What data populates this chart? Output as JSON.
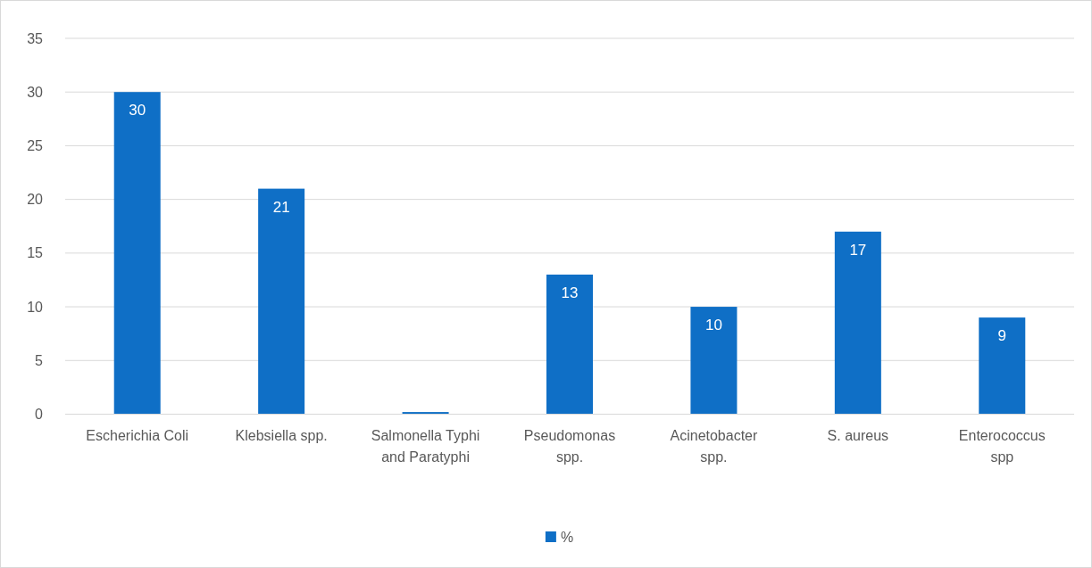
{
  "chart_data": {
    "type": "bar",
    "categories": [
      "Escherichia Coli",
      "Klebsiella spp.",
      "Salmonella Typhi and Paratyphi",
      "Pseudomonas spp.",
      "Acinetobacter spp.",
      "S. aureus",
      "Enterococcus spp"
    ],
    "series": [
      {
        "name": "%",
        "color": "#0f6fc6",
        "values": [
          30,
          21,
          0.2,
          13,
          10,
          17,
          9
        ],
        "value_labels": [
          "30",
          "21",
          null,
          "13",
          "10",
          "17",
          "9"
        ]
      }
    ],
    "ylim": [
      0,
      35
    ],
    "yticks": [
      0,
      5,
      10,
      15,
      20,
      25,
      30,
      35
    ],
    "grid": "y",
    "legend": "bottom"
  }
}
